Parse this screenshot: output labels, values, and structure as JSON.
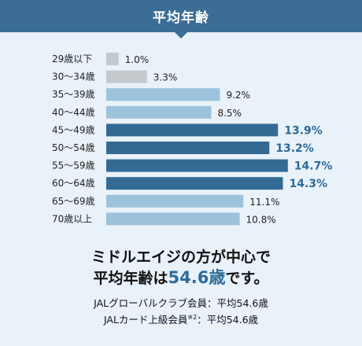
{
  "header": {
    "title": "平均年齢"
  },
  "colors": {
    "header_bg": "#3c6d96",
    "bar_gray": "#c3c9cd",
    "bar_light": "#9dc3dc",
    "bar_dark": "#336b94",
    "highlight_text": "#2e6a99"
  },
  "chart_data": {
    "type": "bar",
    "orientation": "horizontal",
    "categories": [
      "29歳以下",
      "30〜34歳",
      "35〜39歳",
      "40〜44歳",
      "45〜49歳",
      "50〜54歳",
      "55〜59歳",
      "60〜64歳",
      "65〜69歳",
      "70歳以上"
    ],
    "values": [
      1.0,
      3.3,
      9.2,
      8.5,
      13.9,
      13.2,
      14.7,
      14.3,
      11.1,
      10.8
    ],
    "value_labels": [
      "1.0%",
      "3.3%",
      "9.2%",
      "8.5%",
      "13.9%",
      "13.2%",
      "14.7%",
      "14.3%",
      "11.1%",
      "10.8%"
    ],
    "tones": [
      "gray",
      "gray",
      "light",
      "light",
      "dark",
      "dark",
      "dark",
      "dark",
      "light",
      "light"
    ],
    "xlim": [
      0,
      16
    ]
  },
  "summary": {
    "line1": "ミドルエイジの方が中心で",
    "line2_pre": "平均年齢は",
    "line2_value": "54.6歳",
    "line2_post": "です。"
  },
  "notes": {
    "line1": "JALグローバルクラブ会員：平均54.6歳",
    "line2_pre": "JALカード上級会員",
    "line2_sup": "※2",
    "line2_post": "：平均54.6歳"
  }
}
